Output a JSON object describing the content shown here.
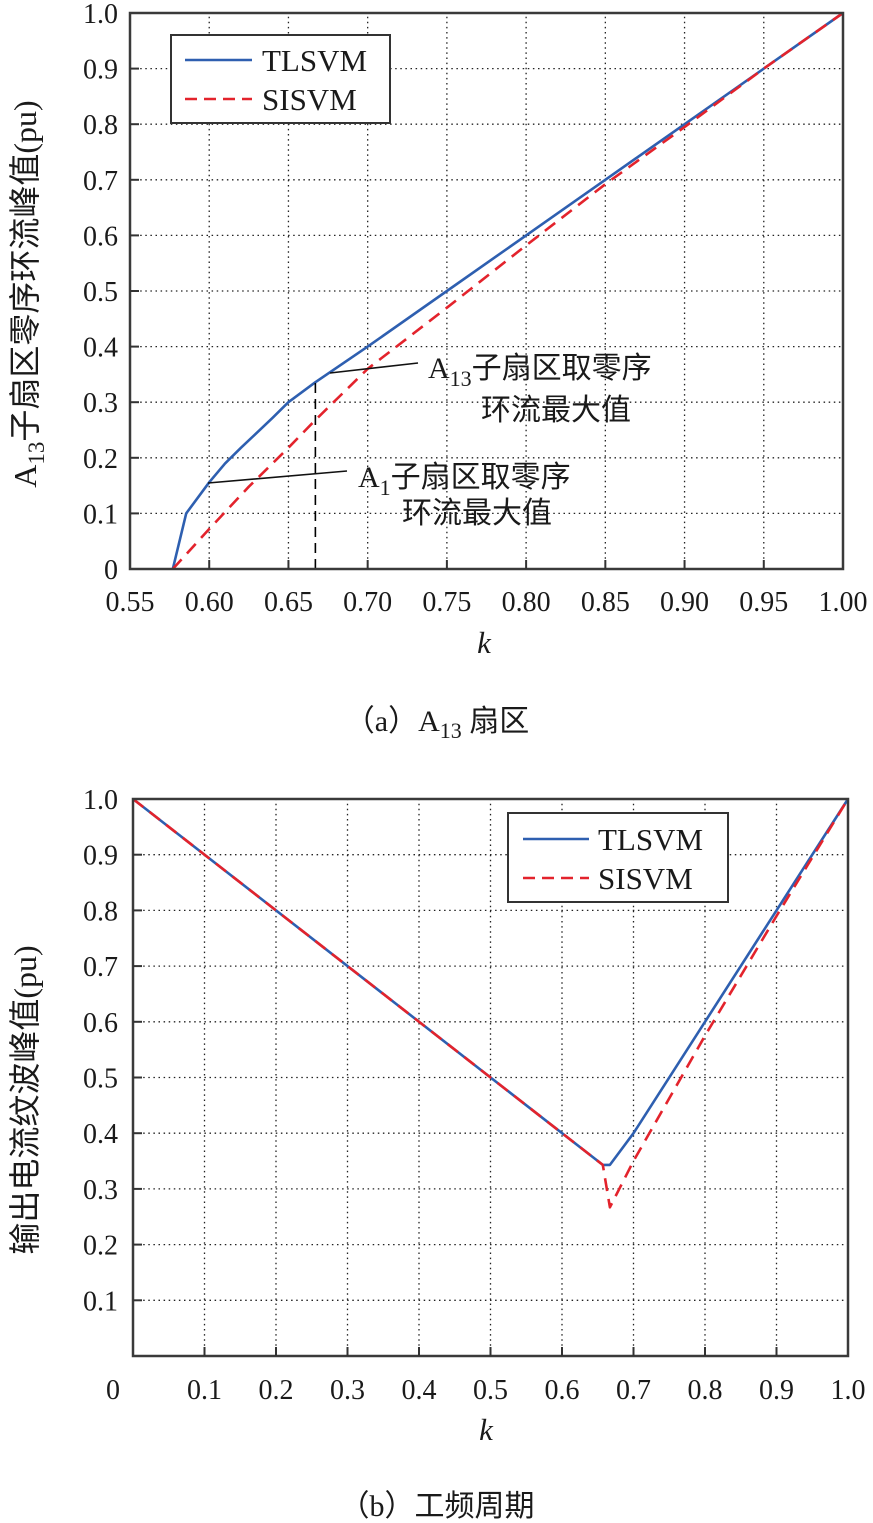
{
  "panels": [
    {
      "caption": {
        "prefix": "（a）A",
        "sub": "13",
        "suffix": " 扇区"
      },
      "ylabel": {
        "prefix": "A",
        "sub": "13",
        "suffix": "子扇区零序环流峰值(pu)"
      },
      "xlabel": "k",
      "legend": [
        {
          "label": "TLSVM"
        },
        {
          "label": "SISVM"
        }
      ],
      "annotations": [
        {
          "prefix": "A",
          "sub": "13",
          "suffix": "子扇区取零序",
          "line2": "环流最大值"
        },
        {
          "prefix": "A",
          "sub": "1",
          "suffix": "子扇区取零序",
          "line2": "环流最大值"
        }
      ]
    },
    {
      "caption": {
        "prefix": "（b）工频周期",
        "sub": "",
        "suffix": ""
      },
      "ylabel": {
        "prefix": "输出电流纹波峰值(pu)",
        "sub": "",
        "suffix": ""
      },
      "xlabel": "k",
      "legend": [
        {
          "label": "TLSVM"
        },
        {
          "label": "SISVM"
        }
      ]
    }
  ],
  "chart_data": [
    {
      "type": "line",
      "title": "（a）A13 扇区",
      "xlabel": "k",
      "ylabel": "A13子扇区零序环流峰值(pu)",
      "xlim": [
        0.55,
        1.0
      ],
      "ylim": [
        0,
        1.0
      ],
      "xticks": [
        0.55,
        0.6,
        0.65,
        0.7,
        0.75,
        0.8,
        0.85,
        0.9,
        0.95,
        1.0
      ],
      "xtick_labels": [
        "0.55",
        "0.60",
        "0.65",
        "0.70",
        "0.75",
        "0.80",
        "0.85",
        "0.90",
        "0.95",
        "1.00"
      ],
      "yticks": [
        0,
        0.1,
        0.2,
        0.3,
        0.4,
        0.5,
        0.6,
        0.7,
        0.8,
        0.9,
        1.0
      ],
      "ytick_labels": [
        "0",
        "0.1",
        "0.2",
        "0.3",
        "0.4",
        "0.5",
        "0.6",
        "0.7",
        "0.8",
        "0.9",
        "1.0"
      ],
      "grid": true,
      "legend_position": "upper left",
      "series": [
        {
          "name": "TLSVM",
          "style": "solid",
          "color": "#2e5fb0",
          "x": [
            0.577,
            0.5855,
            0.6,
            0.61,
            0.62,
            0.63,
            0.64,
            0.65,
            0.667,
            0.7,
            0.75,
            0.8,
            0.85,
            0.9,
            0.95,
            1.0
          ],
          "y": [
            0.0,
            0.1,
            0.156,
            0.19,
            0.218,
            0.245,
            0.272,
            0.3,
            0.336,
            0.4,
            0.5,
            0.6,
            0.7,
            0.8,
            0.9,
            1.0
          ]
        },
        {
          "name": "SISVM",
          "style": "dashed",
          "color": "#e3232c",
          "x": [
            0.577,
            0.6,
            0.625,
            0.65,
            0.667,
            0.7,
            0.75,
            0.8,
            0.85,
            0.9,
            0.95,
            1.0
          ],
          "y": [
            0.0,
            0.072,
            0.148,
            0.218,
            0.268,
            0.36,
            0.47,
            0.582,
            0.692,
            0.795,
            0.9,
            1.0
          ]
        }
      ],
      "reference_lines": [
        {
          "type": "vertical",
          "x": 0.667,
          "y_from": 0,
          "y_to": 0.336,
          "style": "dashed",
          "color": "#000000"
        }
      ],
      "annotations": [
        {
          "text": "A13子扇区取零序环流最大值",
          "x": 0.667,
          "y": 0.336
        },
        {
          "text": "A1子扇区取零序环流最大值",
          "x": 0.6,
          "y": 0.156
        }
      ]
    },
    {
      "type": "line",
      "title": "（b）工频周期",
      "xlabel": "k",
      "ylabel": "输出电流纹波峰值(pu)",
      "xlim": [
        0,
        1.0
      ],
      "ylim": [
        0,
        1.0
      ],
      "xticks": [
        0,
        0.1,
        0.2,
        0.3,
        0.4,
        0.5,
        0.6,
        0.7,
        0.8,
        0.9,
        1.0
      ],
      "xtick_labels": [
        "0",
        "0.1",
        "0.2",
        "0.3",
        "0.4",
        "0.5",
        "0.6",
        "0.7",
        "0.8",
        "0.9",
        "1.0"
      ],
      "yticks": [
        0.1,
        0.2,
        0.3,
        0.4,
        0.5,
        0.6,
        0.7,
        0.8,
        0.9,
        1.0
      ],
      "ytick_labels": [
        "0.1",
        "0.2",
        "0.3",
        "0.4",
        "0.5",
        "0.6",
        "0.7",
        "0.8",
        "0.9",
        "1.0"
      ],
      "grid": true,
      "legend_position": "upper right",
      "series": [
        {
          "name": "TLSVM",
          "style": "solid",
          "color": "#2e5fb0",
          "x": [
            0.0,
            0.657,
            0.667,
            0.7,
            0.8,
            0.9,
            1.0
          ],
          "y": [
            1.0,
            0.343,
            0.343,
            0.4,
            0.6,
            0.8,
            1.0
          ]
        },
        {
          "name": "SISVM",
          "style": "dashed",
          "color": "#e3232c",
          "x": [
            0.0,
            0.657,
            0.667,
            0.7,
            0.8,
            0.9,
            1.0
          ],
          "y": [
            1.0,
            0.343,
            0.267,
            0.35,
            0.575,
            0.79,
            1.0
          ]
        }
      ]
    }
  ]
}
